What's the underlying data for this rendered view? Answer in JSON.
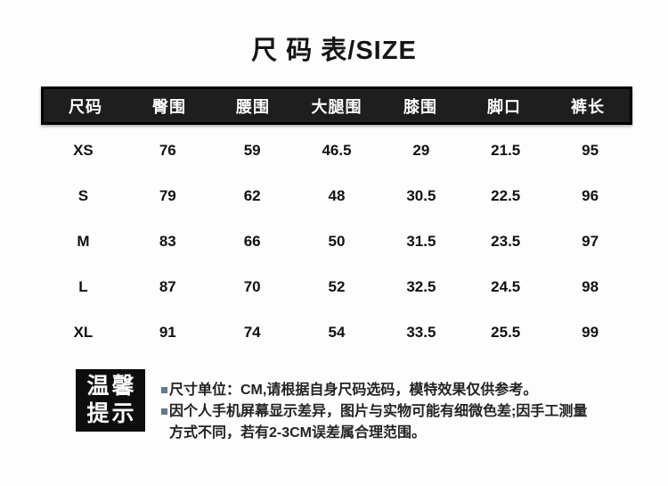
{
  "title": "尺 码 表/SIZE",
  "table": {
    "headers": [
      "尺码",
      "臀围",
      "腰围",
      "大腿围",
      "膝围",
      "脚口",
      "裤长"
    ],
    "rows": [
      [
        "XS",
        "76",
        "59",
        "46.5",
        "29",
        "21.5",
        "95"
      ],
      [
        "S",
        "79",
        "62",
        "48",
        "30.5",
        "22.5",
        "96"
      ],
      [
        "M",
        "83",
        "66",
        "50",
        "31.5",
        "23.5",
        "97"
      ],
      [
        "L",
        "87",
        "70",
        "52",
        "32.5",
        "24.5",
        "98"
      ],
      [
        "XL",
        "91",
        "74",
        "54",
        "33.5",
        "25.5",
        "99"
      ]
    ]
  },
  "notice": {
    "box_line1": "温馨",
    "box_line2": "提示",
    "lines": [
      {
        "bullet": true,
        "text": "尺寸单位：CM,请根据自身尺码选码，模特效果仅供参考。"
      },
      {
        "bullet": true,
        "text": "因个人手机屏幕显示差异，图片与实物可能有细微色差;因手工测量"
      },
      {
        "bullet": false,
        "text": "方式不同，若有2-3CM误差属合理范围。"
      }
    ]
  },
  "colors": {
    "page_bg": "#fdfdfd",
    "header_bg": "#1e1e1e",
    "header_border": "#000000",
    "header_text": "#ffffff",
    "body_text": "#111111",
    "notice_box_bg": "#0d0d0d",
    "notice_box_text": "#ffffff",
    "bullet": "#64778c"
  }
}
